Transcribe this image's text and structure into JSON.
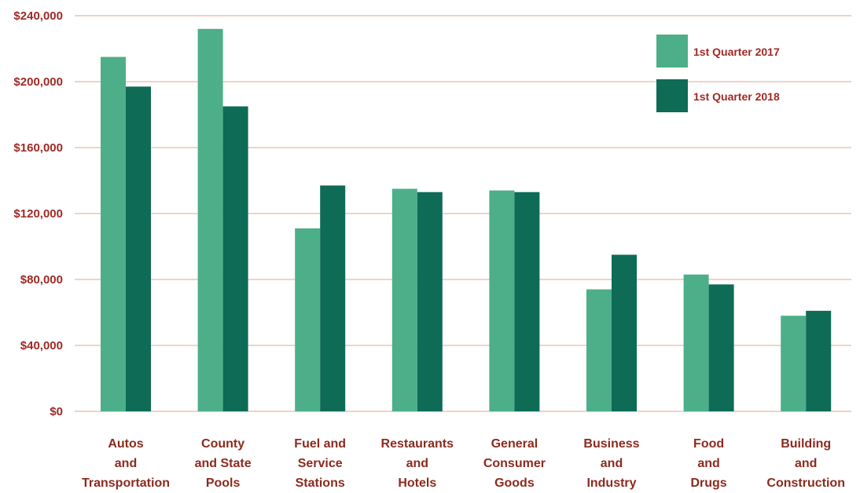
{
  "chart_data": {
    "type": "bar",
    "title": "",
    "xlabel": "",
    "ylabel": "",
    "ylim": [
      0,
      240000
    ],
    "yticks": [
      0,
      40000,
      80000,
      120000,
      160000,
      200000,
      240000
    ],
    "ytick_labels": [
      "$0",
      "$40,000",
      "$80,000",
      "$120,000",
      "$160,000",
      "$200,000",
      "$240,000"
    ],
    "grid": true,
    "legend_position": "top-right",
    "categories": [
      [
        "Autos",
        "and",
        "Transportation"
      ],
      [
        "County",
        "and State",
        "Pools"
      ],
      [
        "Fuel and",
        "Service",
        "Stations"
      ],
      [
        "Restaurants",
        "and",
        "Hotels"
      ],
      [
        "General",
        "Consumer",
        "Goods"
      ],
      [
        "Business",
        "and",
        "Industry"
      ],
      [
        "Food",
        "and",
        "Drugs"
      ],
      [
        "Building",
        "and",
        "Construction"
      ]
    ],
    "series": [
      {
        "name": "1st Quarter 2017",
        "color": "#4caf8a",
        "values": [
          215000,
          232000,
          111000,
          135000,
          134000,
          74000,
          83000,
          58000
        ]
      },
      {
        "name": "1st Quarter 2018",
        "color": "#0e6b56",
        "values": [
          197000,
          185000,
          137000,
          133000,
          133000,
          95000,
          77000,
          61000
        ]
      }
    ]
  }
}
